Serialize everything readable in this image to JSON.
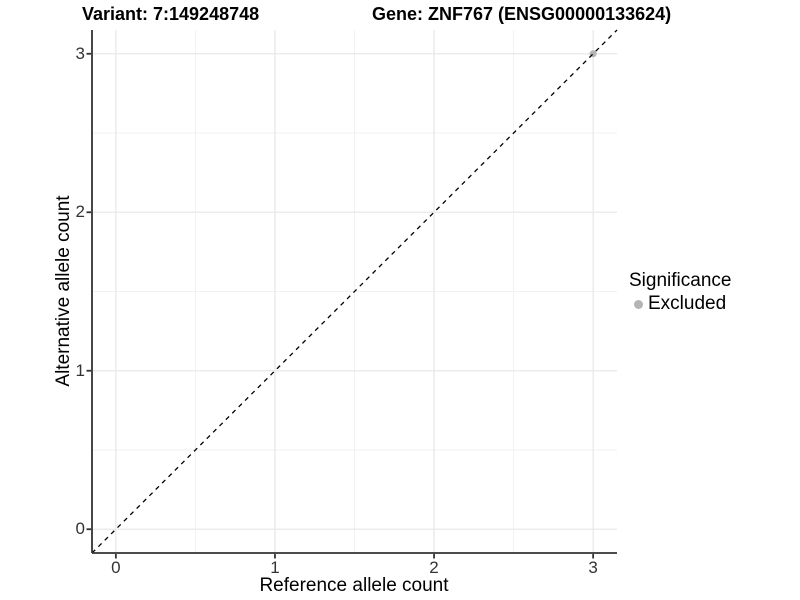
{
  "chart_data": {
    "type": "scatter",
    "title_left": "Variant: 7:149248748",
    "title_right": "Gene: ZNF767 (ENSG00000133624)",
    "xlabel": "Reference allele count",
    "ylabel": "Alternative allele count",
    "xlim": [
      -0.15,
      3.15
    ],
    "ylim": [
      -0.15,
      3.15
    ],
    "x_ticks": [
      0,
      1,
      2,
      3
    ],
    "y_ticks": [
      0,
      1,
      2,
      3
    ],
    "x_minor_ticks": [
      0.5,
      1.5,
      2.5
    ],
    "y_minor_ticks": [
      0.5,
      1.5,
      2.5
    ],
    "points": [
      {
        "x": 3,
        "y": 3,
        "series": "Excluded"
      }
    ],
    "reference_line": {
      "kind": "identity",
      "slope": 1,
      "intercept": 0,
      "style": "dashed",
      "color": "#000000"
    },
    "grid": "on",
    "legend": {
      "position": "right",
      "title": "Significance",
      "items": [
        {
          "label": "Excluded",
          "color": "#b4b4b4"
        }
      ]
    },
    "colors": {
      "grid_major": "#e8e8e8",
      "grid_minor": "#f2f2f2",
      "axis_line": "#333333",
      "tick_mark": "#333333",
      "tick_label": "#333333",
      "point": "#b4b4b4"
    }
  }
}
